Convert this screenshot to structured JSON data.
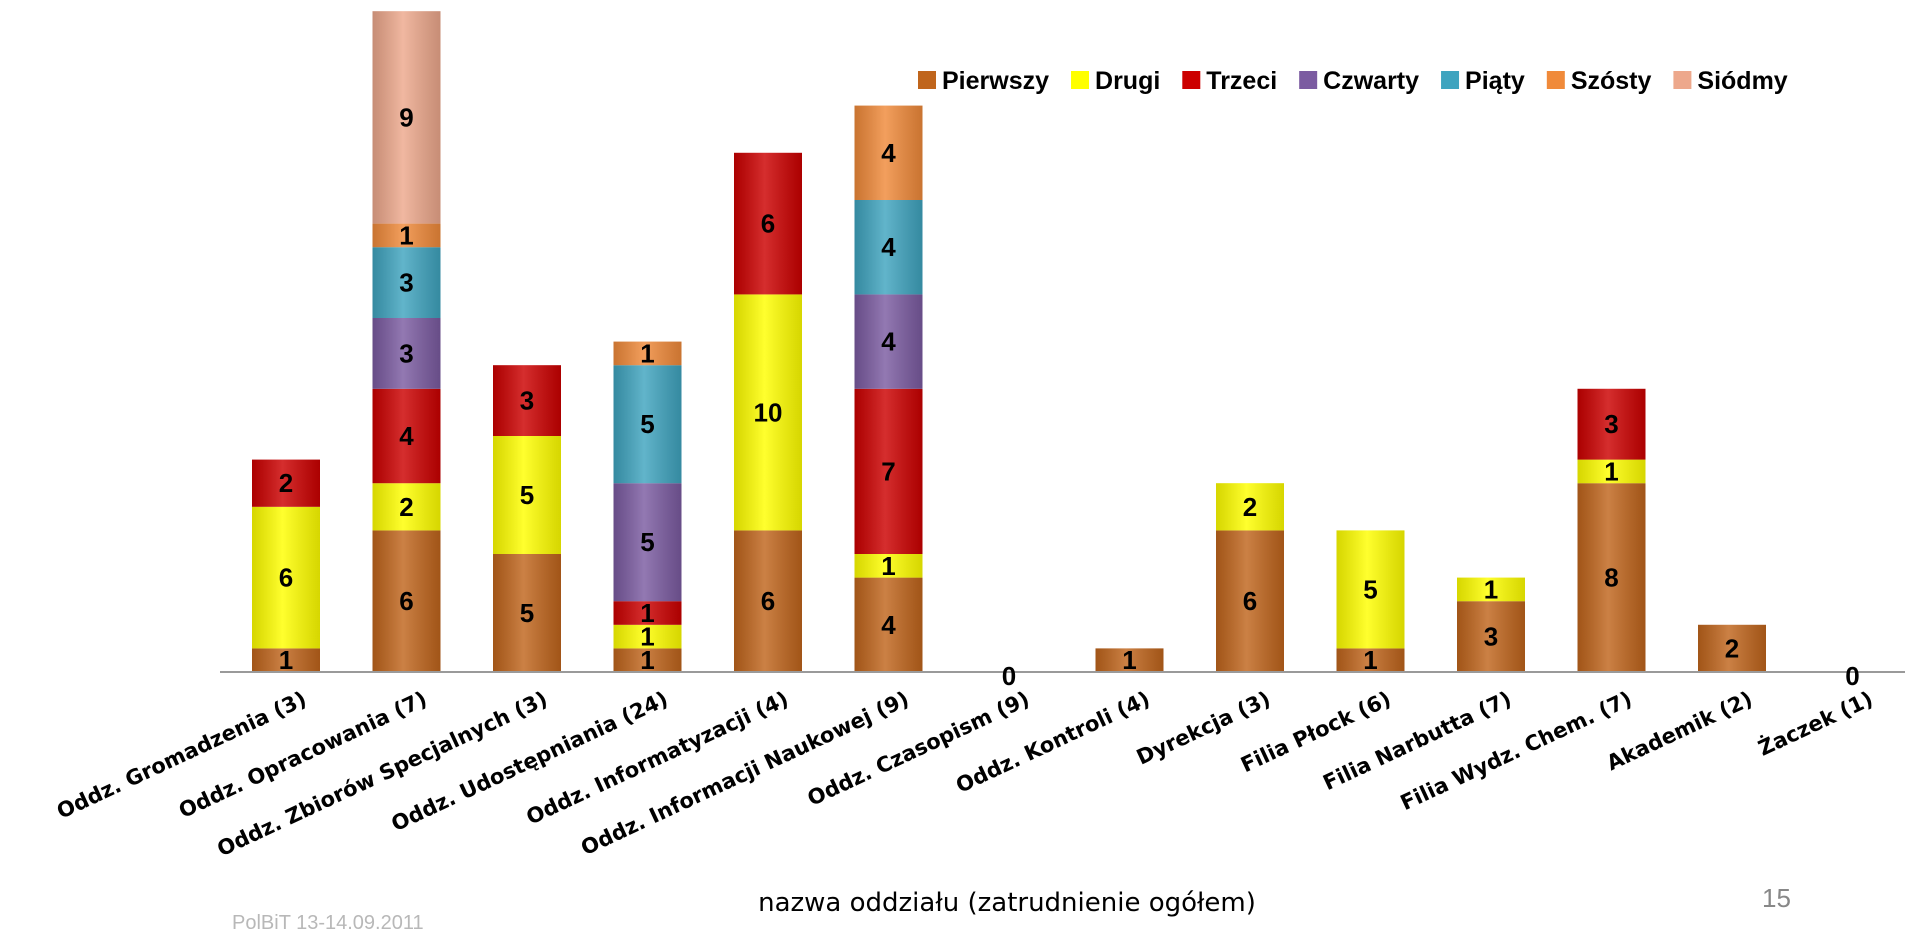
{
  "chart_data": {
    "type": "bar",
    "stacked": true,
    "categories": [
      "Oddz. Gromadzenia (3)",
      "Oddz. Opracowania (7)",
      "Oddz. Zbiorów Specjalnych (3)",
      "Oddz. Udostępniania (24)",
      "Oddz. Informatyzacji (4)",
      "Oddz. Informacji Naukowej (9)",
      "Oddz. Czasopism (9)",
      "Oddz. Kontroli (4)",
      "Dyrekcja (3)",
      "Filia Płock (6)",
      "Filia Narbutta (7)",
      "Filia Wydz. Chem. (7)",
      "Akademik (2)",
      "Żaczek (1)"
    ],
    "series": [
      {
        "name": "Pierwszy",
        "color": "#C0651C",
        "values": [
          1,
          6,
          5,
          1,
          6,
          4,
          0,
          1,
          6,
          1,
          3,
          8,
          2,
          0
        ]
      },
      {
        "name": "Drugi",
        "color": "#FFFF00",
        "values": [
          6,
          2,
          5,
          1,
          10,
          1,
          0,
          0,
          2,
          5,
          1,
          1,
          0,
          0
        ]
      },
      {
        "name": "Trzeci",
        "color": "#CC0000",
        "values": [
          2,
          4,
          3,
          1,
          6,
          7,
          0,
          0,
          0,
          0,
          0,
          3,
          0,
          0
        ]
      },
      {
        "name": "Czwarty",
        "color": "#7B5BA1",
        "values": [
          0,
          3,
          0,
          5,
          0,
          4,
          0,
          0,
          0,
          0,
          0,
          0,
          0,
          0
        ]
      },
      {
        "name": "Piąty",
        "color": "#3FA4BF",
        "values": [
          0,
          3,
          0,
          5,
          0,
          4,
          0,
          0,
          0,
          0,
          0,
          0,
          0,
          0
        ]
      },
      {
        "name": "Szósty",
        "color": "#F08A3A",
        "values": [
          0,
          1,
          0,
          1,
          0,
          4,
          0,
          0,
          0,
          0,
          0,
          0,
          0,
          0
        ]
      },
      {
        "name": "Siódmy",
        "color": "#EDA88C",
        "values": [
          0,
          9,
          0,
          0,
          0,
          0,
          0,
          0,
          0,
          0,
          0,
          0,
          0,
          0
        ]
      }
    ],
    "zero_labels": [
      "0",
      "0"
    ],
    "title": "",
    "xlabel": "nazwa oddziału (zatrudnienie ogółem)",
    "ylabel": "",
    "ylim": [
      0,
      28
    ],
    "grid": false,
    "legend_position": "top-right"
  },
  "slide": {
    "page_number": "15",
    "footer_note": "PolBiT 13-14.09.2011"
  }
}
